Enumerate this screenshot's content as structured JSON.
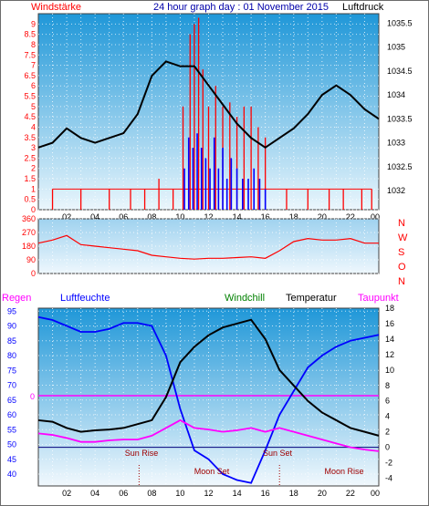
{
  "header": {
    "left_label": "Windstärke",
    "center_label": "24 hour graph day : 01 November 2015",
    "right_label": "Luftdruck"
  },
  "legend": {
    "regen": "Regen",
    "luftfeuchte": "Luftfeuchte",
    "windchill": "Windchill",
    "temperatur": "Temperatur",
    "taupunkt": "Taupunkt"
  },
  "colors": {
    "wind": "#ff0000",
    "gust": "#0000ff",
    "pressure": "#000000",
    "direction": "#ff0000",
    "humidity": "#0000ff",
    "temperature": "#000000",
    "windchill": "#008000",
    "dewpoint": "#ff00ff",
    "rain_line": "#ff00ff"
  },
  "chart_data": [
    {
      "id": "wind_pressure",
      "type": "line",
      "x_ticks": [
        "02",
        "04",
        "06",
        "08",
        "10",
        "12",
        "14",
        "16",
        "18",
        "20",
        "22",
        "00"
      ],
      "left_axis": {
        "label": "Windstärke",
        "range": [
          0,
          9.5
        ],
        "ticks": [
          "0",
          "0.5",
          "1",
          "1.5",
          "2",
          "2.5",
          "3",
          "3.5",
          "4",
          "4.5",
          "5",
          "5.5",
          "6",
          "6.5",
          "7",
          "7.5",
          "8",
          "8.5",
          "9"
        ]
      },
      "right_axis": {
        "label": "Luftdruck",
        "range": [
          1031.6,
          1035.7
        ],
        "ticks": [
          "1032",
          "1032.5",
          "1033",
          "1033.5",
          "1034",
          "1034.5",
          "1035",
          "1035.5"
        ]
      },
      "series": [
        {
          "name": "pressure",
          "axis": "right",
          "x": [
            0,
            1,
            2,
            3,
            4,
            5,
            6,
            7,
            8,
            9,
            10,
            11,
            12,
            13,
            14,
            15,
            16,
            17,
            18,
            19,
            20,
            21,
            22,
            23,
            24
          ],
          "y": [
            1032.9,
            1033.0,
            1033.3,
            1033.1,
            1033.0,
            1033.1,
            1033.2,
            1033.6,
            1034.4,
            1034.7,
            1034.6,
            1034.6,
            1034.2,
            1033.8,
            1033.4,
            1033.1,
            1032.9,
            1033.1,
            1033.3,
            1033.6,
            1034.0,
            1034.2,
            1034.0,
            1033.7,
            1033.5
          ]
        },
        {
          "name": "wind",
          "axis": "left",
          "style": "bars",
          "x": [
            1,
            3,
            5,
            6.5,
            7.5,
            8.5,
            9.5,
            10.2,
            10.7,
            11.0,
            11.3,
            11.6,
            12.0,
            12.5,
            13.0,
            13.5,
            14.0,
            14.5,
            15.0,
            15.5,
            16.0,
            17.5,
            19.0,
            20.5,
            21.5,
            22.8,
            23.5
          ],
          "y": [
            1,
            1,
            1,
            1,
            1,
            1.5,
            1,
            5,
            8.5,
            9,
            9.3,
            6.8,
            5,
            6,
            5,
            5.2,
            4.5,
            5,
            5,
            4,
            3.5,
            1,
            1,
            1,
            1,
            1,
            1
          ]
        },
        {
          "name": "gust",
          "axis": "left",
          "style": "bars",
          "x": [
            10.3,
            10.6,
            10.9,
            11.2,
            11.5,
            11.8,
            12.1,
            12.4,
            12.7,
            13.0,
            13.3,
            13.6,
            14.0,
            14.4,
            14.8,
            15.2,
            15.6,
            16.0
          ],
          "y": [
            2,
            3.5,
            3,
            3.7,
            3,
            2.5,
            2,
            3.5,
            2,
            3,
            1.5,
            2.5,
            2,
            1.5,
            1.5,
            2,
            1.5,
            1
          ]
        }
      ]
    },
    {
      "id": "direction",
      "type": "line",
      "left_axis": {
        "range": [
          0,
          360
        ],
        "ticks": [
          "0",
          "90",
          "180",
          "270",
          "360"
        ]
      },
      "right_axis": {
        "labels": [
          "N",
          "W",
          "S",
          "O",
          "N"
        ]
      },
      "series": [
        {
          "name": "wind_direction",
          "x": [
            0,
            1,
            2,
            3,
            4,
            5,
            6,
            7,
            8,
            9,
            10,
            11,
            12,
            13,
            14,
            15,
            16,
            17,
            18,
            19,
            20,
            21,
            22,
            23,
            24
          ],
          "y": [
            200,
            220,
            250,
            190,
            180,
            170,
            160,
            150,
            120,
            110,
            100,
            95,
            100,
            100,
            105,
            110,
            100,
            150,
            210,
            230,
            220,
            220,
            230,
            200,
            200
          ]
        }
      ]
    },
    {
      "id": "temp_humidity",
      "type": "line",
      "left_axis": {
        "label": "Luftfeuchte",
        "range": [
          36,
          96
        ],
        "ticks": [
          "40",
          "45",
          "50",
          "55",
          "60",
          "65",
          "70",
          "75",
          "80",
          "85",
          "90",
          "95"
        ]
      },
      "right_axis": {
        "label": "Temperatur",
        "range": [
          -5,
          18
        ],
        "ticks": [
          "-4",
          "-2",
          "0",
          "2",
          "4",
          "6",
          "8",
          "10",
          "12",
          "14",
          "16",
          "18"
        ]
      },
      "rain_label": "0",
      "annotations": {
        "sun_rise": "Sun Rise",
        "sun_set": "Sun Set",
        "moon_set": "Moon Set",
        "moon_rise": "Moon Rise"
      },
      "events_hour": {
        "sun_rise": 7.1,
        "sun_set": 17.0
      },
      "x_ticks": [
        "02",
        "04",
        "06",
        "08",
        "10",
        "12",
        "14",
        "16",
        "18",
        "20",
        "22",
        "00"
      ],
      "series": [
        {
          "name": "humidity",
          "axis": "left",
          "x": [
            0,
            1,
            2,
            3,
            4,
            5,
            6,
            7,
            8,
            9,
            10,
            11,
            12,
            13,
            14,
            15,
            16,
            17,
            18,
            19,
            20,
            21,
            22,
            23,
            24
          ],
          "y": [
            93,
            92,
            90,
            88,
            88,
            89,
            91,
            91,
            90,
            80,
            62,
            48,
            45,
            40,
            38,
            37,
            48,
            60,
            68,
            76,
            80,
            83,
            85,
            86,
            87
          ]
        },
        {
          "name": "temperature",
          "axis": "right",
          "x": [
            0,
            1,
            2,
            3,
            4,
            5,
            6,
            7,
            8,
            9,
            10,
            11,
            12,
            13,
            14,
            15,
            16,
            17,
            18,
            19,
            20,
            21,
            22,
            23,
            24
          ],
          "y": [
            3.5,
            3.3,
            2.5,
            2.0,
            2.2,
            2.3,
            2.5,
            3.0,
            3.5,
            6.5,
            11,
            13,
            14.5,
            15.5,
            16,
            16.5,
            14,
            10,
            8,
            6,
            4.5,
            3.5,
            2.5,
            2,
            1.5
          ]
        },
        {
          "name": "dewpoint",
          "axis": "right",
          "x": [
            0,
            1,
            2,
            3,
            4,
            5,
            6,
            7,
            8,
            9,
            10,
            11,
            12,
            13,
            14,
            15,
            16,
            17,
            18,
            19,
            20,
            21,
            22,
            23,
            24
          ],
          "y": [
            1.8,
            1.6,
            1.2,
            0.7,
            0.7,
            0.9,
            1.0,
            1.0,
            1.5,
            2.5,
            3.5,
            2.5,
            2.3,
            2.0,
            2.2,
            2.5,
            2.0,
            2.5,
            2.0,
            1.5,
            1.0,
            0.5,
            0,
            -0.3,
            -0.5
          ]
        }
      ]
    }
  ]
}
